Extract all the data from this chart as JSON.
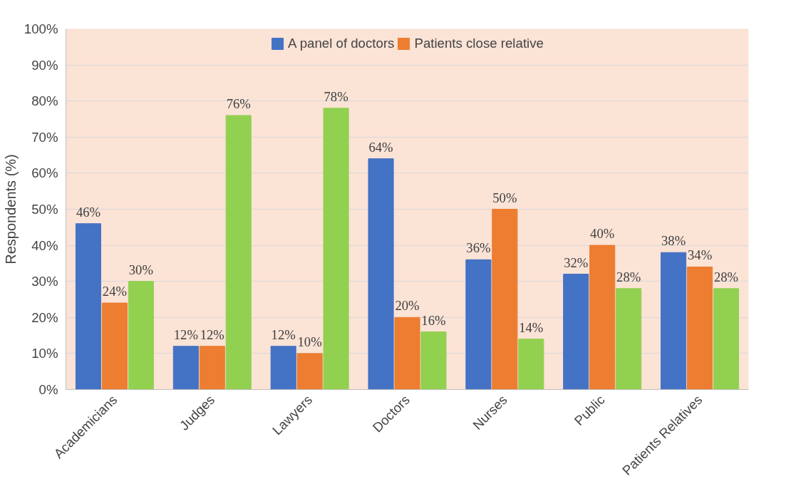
{
  "chart_data": {
    "type": "bar",
    "ylabel": "Respondents (%)",
    "categories": [
      "Academicians",
      "Judges",
      "Lawyers",
      "Doctors",
      "Nurses",
      "Public",
      "Patients Relatives"
    ],
    "series": [
      {
        "name": "A panel of doctors",
        "color": "#4472c4",
        "values": [
          46,
          12,
          12,
          64,
          36,
          32,
          38
        ],
        "value_labels": [
          "46%",
          "12%",
          "12%",
          "64%",
          "36%",
          "32%",
          "38%"
        ]
      },
      {
        "name": "Patients close relative",
        "color": "#ed7d31",
        "values": [
          24,
          12,
          10,
          20,
          50,
          40,
          34
        ],
        "value_labels": [
          "24%",
          "12%",
          "10%",
          "20%",
          "50%",
          "40%",
          "34%"
        ]
      },
      {
        "color": "#92d050",
        "values": [
          30,
          76,
          78,
          16,
          14,
          28,
          28
        ],
        "value_labels": [
          "30%",
          "76%",
          "78%",
          "16%",
          "14%",
          "28%",
          "28%"
        ]
      }
    ],
    "ylim": [
      0,
      100
    ],
    "yticks": [
      {
        "value": 0,
        "label": "0%"
      },
      {
        "value": 10,
        "label": "10%"
      },
      {
        "value": 20,
        "label": "20%"
      },
      {
        "value": 30,
        "label": "30%"
      },
      {
        "value": 40,
        "label": "40%"
      },
      {
        "value": 50,
        "label": "50%"
      },
      {
        "value": 60,
        "label": "60%"
      },
      {
        "value": 70,
        "label": "70%"
      },
      {
        "value": 80,
        "label": "80%"
      },
      {
        "value": 90,
        "label": "90%"
      },
      {
        "value": 100,
        "label": "100%"
      }
    ],
    "grid": "y",
    "legend": "top"
  }
}
